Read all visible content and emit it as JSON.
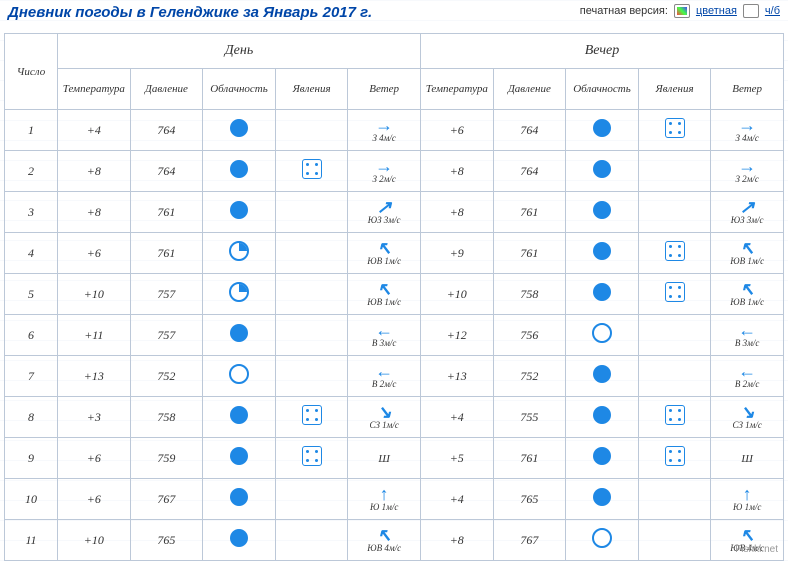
{
  "title": "Дневник погоды в Геленджике за Январь 2017 г.",
  "print": {
    "label": "печатная версия:",
    "color": "цветная",
    "bw": "ч/б"
  },
  "cols": {
    "num": "Число",
    "day": "День",
    "eve": "Вечер",
    "temp": "Температура",
    "press": "Давление",
    "cloud": "Облачность",
    "phenom": "Явления",
    "wind": "Ветер"
  },
  "arrows": {
    "E": "→",
    "W": "←",
    "N": "↑",
    "S": "↓",
    "NE": "↗",
    "NW": "↖",
    "SE": "↘",
    "SW": "↙"
  },
  "rows": [
    {
      "n": "1",
      "d": {
        "t": "+4",
        "p": "764",
        "c": "full",
        "ph": "",
        "w": {
          "dir": "E",
          "lbl": "З 4м/с"
        }
      },
      "e": {
        "t": "+6",
        "p": "764",
        "c": "full",
        "ph": "dots",
        "w": {
          "dir": "E",
          "lbl": "З 4м/с"
        }
      }
    },
    {
      "n": "2",
      "d": {
        "t": "+8",
        "p": "764",
        "c": "full",
        "ph": "dots",
        "w": {
          "dir": "E",
          "lbl": "З 2м/с"
        }
      },
      "e": {
        "t": "+8",
        "p": "764",
        "c": "full",
        "ph": "",
        "w": {
          "dir": "E",
          "lbl": "З 2м/с"
        }
      }
    },
    {
      "n": "3",
      "d": {
        "t": "+8",
        "p": "761",
        "c": "full",
        "ph": "",
        "w": {
          "dir": "NE",
          "lbl": "ЮЗ 3м/с"
        }
      },
      "e": {
        "t": "+8",
        "p": "761",
        "c": "full",
        "ph": "",
        "w": {
          "dir": "NE",
          "lbl": "ЮЗ 3м/с"
        }
      }
    },
    {
      "n": "4",
      "d": {
        "t": "+6",
        "p": "761",
        "c": "partial",
        "ph": "",
        "w": {
          "dir": "NW",
          "lbl": "ЮВ 1м/с"
        }
      },
      "e": {
        "t": "+9",
        "p": "761",
        "c": "full",
        "ph": "dots",
        "w": {
          "dir": "NW",
          "lbl": "ЮВ 1м/с"
        }
      }
    },
    {
      "n": "5",
      "d": {
        "t": "+10",
        "p": "757",
        "c": "partial",
        "ph": "",
        "w": {
          "dir": "NW",
          "lbl": "ЮВ 1м/с"
        }
      },
      "e": {
        "t": "+10",
        "p": "758",
        "c": "full",
        "ph": "dots",
        "w": {
          "dir": "NW",
          "lbl": "ЮВ 1м/с"
        }
      }
    },
    {
      "n": "6",
      "d": {
        "t": "+11",
        "p": "757",
        "c": "full",
        "ph": "",
        "w": {
          "dir": "W",
          "lbl": "В 3м/с"
        }
      },
      "e": {
        "t": "+12",
        "p": "756",
        "c": "empty",
        "ph": "",
        "w": {
          "dir": "W",
          "lbl": "В 3м/с"
        }
      }
    },
    {
      "n": "7",
      "d": {
        "t": "+13",
        "p": "752",
        "c": "empty",
        "ph": "",
        "w": {
          "dir": "W",
          "lbl": "В 2м/с"
        }
      },
      "e": {
        "t": "+13",
        "p": "752",
        "c": "full",
        "ph": "",
        "w": {
          "dir": "W",
          "lbl": "В 2м/с"
        }
      }
    },
    {
      "n": "8",
      "d": {
        "t": "+3",
        "p": "758",
        "c": "full",
        "ph": "dots",
        "w": {
          "dir": "SE",
          "lbl": "СЗ 1м/с"
        }
      },
      "e": {
        "t": "+4",
        "p": "755",
        "c": "full",
        "ph": "dots",
        "w": {
          "dir": "SE",
          "lbl": "СЗ 1м/с"
        }
      }
    },
    {
      "n": "9",
      "d": {
        "t": "+6",
        "p": "759",
        "c": "full",
        "ph": "dots",
        "w": {
          "dir": "",
          "lbl": "Ш"
        }
      },
      "e": {
        "t": "+5",
        "p": "761",
        "c": "full",
        "ph": "dots",
        "w": {
          "dir": "",
          "lbl": "Ш"
        }
      }
    },
    {
      "n": "10",
      "d": {
        "t": "+6",
        "p": "767",
        "c": "full",
        "ph": "",
        "w": {
          "dir": "N",
          "lbl": "Ю 1м/с"
        }
      },
      "e": {
        "t": "+4",
        "p": "765",
        "c": "full",
        "ph": "",
        "w": {
          "dir": "N",
          "lbl": "Ю 1м/с"
        }
      }
    },
    {
      "n": "11",
      "d": {
        "t": "+10",
        "p": "765",
        "c": "full",
        "ph": "",
        "w": {
          "dir": "NW",
          "lbl": "ЮВ 4м/с"
        }
      },
      "e": {
        "t": "+8",
        "p": "767",
        "c": "empty",
        "ph": "",
        "w": {
          "dir": "NW",
          "lbl": "ЮВ 4м/с"
        }
      }
    }
  ],
  "watermark": "Fishki.net",
  "colors": {
    "accent": "#1e88e5",
    "header": "#0046a8",
    "temp": "#d22",
    "border": "#bcc8d8"
  }
}
